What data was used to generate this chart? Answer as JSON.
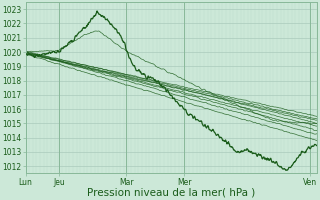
{
  "bg_color": "#cce8d8",
  "plot_bg_color": "#cce8d8",
  "line_color": "#1a5c1a",
  "grid_major_color": "#aacabc",
  "grid_minor_color": "#bbdace",
  "ylim": [
    1011.5,
    1023.5
  ],
  "yticks": [
    1012,
    1013,
    1014,
    1015,
    1016,
    1017,
    1018,
    1019,
    1020,
    1021,
    1022,
    1023
  ],
  "xlabel": "Pression niveau de la mer( hPa )",
  "xtick_labels": [
    "Lun",
    "Jeu",
    "Mar",
    "Mer",
    "Ven"
  ],
  "xtick_positions": [
    0.0,
    0.115,
    0.345,
    0.545,
    0.975
  ],
  "tick_fontsize": 5.5,
  "xlabel_fontsize": 7.5
}
